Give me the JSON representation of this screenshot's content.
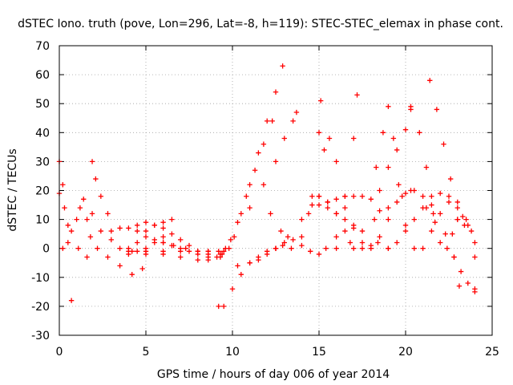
{
  "chart_data": {
    "type": "scatter",
    "title": "dSTEC Iono. truth (pove, Lon=296, Lat=-8, h=119): STEC-STEC_elemax in phase cont.",
    "xlabel": "GPS time / hours of day 006 of year 2014",
    "ylabel": "dSTEC  / TECUs",
    "xlim": [
      0,
      25
    ],
    "ylim": [
      -30,
      70
    ],
    "xticks": [
      "0",
      "5",
      "10",
      "15",
      "20",
      "25"
    ],
    "yticks": [
      "-30",
      "-20",
      "-10",
      "0",
      "10",
      "20",
      "30",
      "40",
      "50",
      "60",
      "70"
    ],
    "grid": true,
    "marker": "+",
    "color": "#ff0000",
    "series": [
      {
        "x": [
          0.0,
          0.2,
          0.5,
          0.7
        ],
        "y": [
          30,
          22,
          8,
          -18
        ]
      },
      {
        "x": [
          0.0,
          0.3,
          0.7,
          1.1,
          1.6
        ],
        "y": [
          19,
          14,
          6,
          0,
          -3
        ]
      },
      {
        "x": [
          0.2,
          0.5,
          1.0,
          1.2
        ],
        "y": [
          0,
          2,
          10,
          14
        ]
      },
      {
        "x": [
          1.4,
          1.6,
          1.8,
          2.2,
          2.8,
          3.5,
          4.2,
          4.8
        ],
        "y": [
          17,
          10,
          4,
          0,
          -3,
          -6,
          -9,
          -7
        ]
      },
      {
        "x": [
          1.9,
          2.1,
          2.4,
          2.8
        ],
        "y": [
          30,
          24,
          18,
          12
        ]
      },
      {
        "x": [
          1.9,
          2.4,
          3.0,
          3.5,
          4.0,
          4.5,
          5.0,
          5.5,
          6.0
        ],
        "y": [
          12,
          6,
          3,
          0,
          -2,
          -1,
          0,
          2,
          4
        ]
      },
      {
        "x": [
          3.0,
          3.5,
          4.0,
          4.5,
          5.0,
          5.5,
          6.0,
          6.6,
          7.3,
          8.0,
          8.6
        ],
        "y": [
          6,
          7,
          7,
          6,
          4,
          3,
          2,
          1,
          0,
          -1,
          -1
        ]
      },
      {
        "x": [
          4.0,
          4.5,
          5.0,
          5.5,
          6.0,
          6.5
        ],
        "y": [
          0,
          2,
          6,
          8,
          9,
          10
        ]
      },
      {
        "x": [
          4.5,
          5.0,
          5.5,
          6.0,
          6.5,
          7.0,
          7.5,
          8.0,
          8.6
        ],
        "y": [
          8,
          9,
          8,
          7,
          5,
          3,
          1,
          -1,
          -2
        ]
      },
      {
        "x": [
          4.0,
          5.0,
          6.0,
          7.0,
          8.0,
          8.6,
          9.2,
          9.4
        ],
        "y": [
          -1,
          -1,
          -1,
          -1,
          -1,
          -1,
          -1,
          -2
        ]
      },
      {
        "x": [
          6.0,
          6.5,
          7.0,
          7.5,
          8.0,
          8.6,
          9.1
        ],
        "y": [
          2,
          1,
          0,
          -1,
          -2,
          -3,
          -3
        ]
      },
      {
        "x": [
          4.2,
          5.0,
          6.0,
          7.0,
          8.0,
          8.6,
          9.3
        ],
        "y": [
          -1,
          -2,
          -2,
          -3,
          -4,
          -4,
          -3
        ]
      },
      {
        "x": [
          9.2,
          9.5,
          10.0,
          10.5,
          11.0,
          11.5,
          12.0,
          12.5,
          12.9
        ],
        "y": [
          -20,
          -20,
          -14,
          -9,
          -5,
          -3,
          -1,
          0,
          1
        ]
      },
      {
        "x": [
          9.5,
          9.8,
          10.1,
          10.5,
          11.0,
          11.5,
          12.0,
          12.5,
          12.9
        ],
        "y": [
          -1,
          0,
          4,
          12,
          22,
          33,
          44,
          54,
          63
        ]
      },
      {
        "x": [
          9.3,
          9.6,
          9.9,
          10.3,
          10.8,
          11.3,
          11.8,
          12.3
        ],
        "y": [
          -2,
          0,
          3,
          9,
          18,
          27,
          36,
          44
        ]
      },
      {
        "x": [
          11.0,
          11.8,
          12.5,
          13.0,
          13.5,
          13.7
        ],
        "y": [
          14,
          22,
          30,
          38,
          44,
          47
        ]
      },
      {
        "x": [
          10.3,
          11.0,
          11.5,
          12.0,
          12.5,
          13.0,
          13.5,
          14.0,
          14.5,
          15.0
        ],
        "y": [
          -6,
          -5,
          -4,
          -2,
          0,
          2,
          3,
          1,
          -1,
          -2
        ]
      },
      {
        "x": [
          12.2,
          12.8,
          13.4,
          14.0,
          14.6,
          15.0,
          15.1
        ],
        "y": [
          12,
          6,
          0,
          4,
          18,
          40,
          51
        ]
      },
      {
        "x": [
          12.5,
          13.2,
          14.0,
          14.6,
          15.0,
          15.5,
          16.0,
          16.5,
          17.0
        ],
        "y": [
          0,
          4,
          10,
          15,
          18,
          16,
          12,
          6,
          0
        ]
      },
      {
        "x": [
          15.0,
          15.5,
          16.0,
          16.5,
          17.0,
          17.5,
          18.0,
          18.5,
          19.0
        ],
        "y": [
          18,
          16,
          17,
          18,
          18,
          18,
          17,
          13,
          0
        ]
      },
      {
        "x": [
          14.4,
          15.0,
          15.5,
          16.0,
          16.5,
          17.0
        ],
        "y": [
          12,
          15,
          14,
          12,
          10,
          7
        ]
      },
      {
        "x": [
          15.3,
          15.6,
          16.0,
          16.5,
          17.0,
          17.5,
          18.0,
          18.4
        ],
        "y": [
          34,
          38,
          30,
          18,
          8,
          2,
          0,
          2
        ]
      },
      {
        "x": [
          15.4,
          16.0,
          16.5,
          17.0,
          17.2
        ],
        "y": [
          0,
          4,
          14,
          38,
          53
        ]
      },
      {
        "x": [
          16.0,
          16.8,
          17.5,
          18.2,
          19.0,
          19.8,
          20.3
        ],
        "y": [
          0,
          2,
          6,
          10,
          14,
          18,
          20
        ]
      },
      {
        "x": [
          17.5,
          18.0,
          18.5,
          19.0,
          19.5,
          20.0,
          20.5,
          21.0,
          21.5
        ],
        "y": [
          0,
          1,
          4,
          10,
          16,
          19,
          20,
          18,
          15
        ]
      },
      {
        "x": [
          18.3,
          18.7,
          19.0,
          19.3,
          19.6,
          20.0,
          20.5
        ],
        "y": [
          28,
          40,
          49,
          38,
          22,
          8,
          0
        ]
      },
      {
        "x": [
          18.5,
          19.0,
          19.5,
          20.0,
          20.3
        ],
        "y": [
          20,
          28,
          34,
          41,
          48
        ]
      },
      {
        "x": [
          19.0,
          19.5,
          20.0,
          20.5,
          21.0,
          21.5,
          22.0,
          22.5,
          23.0
        ],
        "y": [
          0,
          2,
          6,
          10,
          14,
          18,
          19,
          16,
          10
        ]
      },
      {
        "x": [
          20.3,
          20.8,
          21.2,
          21.6,
          22.0
        ],
        "y": [
          49,
          40,
          28,
          12,
          2
        ]
      },
      {
        "x": [
          21.0,
          21.5,
          22.0,
          22.5,
          23.0,
          23.5,
          24.0
        ],
        "y": [
          0,
          6,
          12,
          18,
          16,
          10,
          -3
        ]
      },
      {
        "x": [
          21.4,
          21.8,
          22.2,
          22.6,
          23.0,
          23.4,
          23.8,
          24.0
        ],
        "y": [
          58,
          48,
          36,
          24,
          14,
          8,
          6,
          -14
        ]
      },
      {
        "x": [
          22.4,
          22.7,
          23.0,
          23.3,
          23.6,
          24.0
        ],
        "y": [
          0,
          5,
          10,
          11,
          8,
          2
        ]
      },
      {
        "x": [
          22.8,
          23.2,
          23.6,
          24.0
        ],
        "y": [
          -3,
          -8,
          -12,
          -15
        ]
      },
      {
        "x": [
          21.2,
          21.7,
          22.3,
          22.8,
          23.1
        ],
        "y": [
          14,
          9,
          5,
          -3,
          -13
        ]
      }
    ]
  }
}
